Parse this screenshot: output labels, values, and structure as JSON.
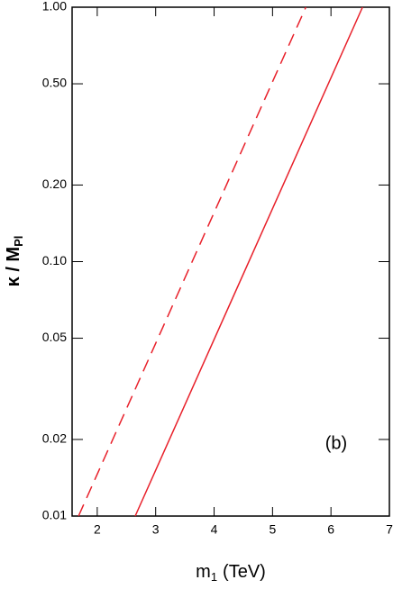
{
  "chart_data": {
    "type": "line",
    "log_y": true,
    "xlabel": "m",
    "xlabel_sub": "1",
    "xlabel_unit": "(TeV)",
    "ylabel": "κ / M",
    "ylabel_sub": "Pl",
    "annotation": "(b)",
    "xlim": [
      1.57,
      7
    ],
    "xticks": [
      2,
      3,
      4,
      5,
      6,
      7
    ],
    "ylim": [
      0.01,
      1
    ],
    "yticks": [
      0.01,
      0.02,
      0.05,
      {
        "value": 0.1,
        "label": "0.10"
      },
      {
        "value": 0.2,
        "label": "0.20"
      },
      {
        "value": 0.5,
        "label": "0.50"
      },
      {
        "value": 1,
        "label": "1.00"
      }
    ],
    "series": [
      {
        "color": "#e8202a",
        "dashed": true,
        "x": [
          1.68,
          5.57
        ],
        "values": [
          0.01,
          1
        ]
      },
      {
        "color": "#e8202a",
        "dashed": false,
        "x": [
          2.65,
          6.54
        ],
        "values": [
          0.01,
          1
        ]
      }
    ]
  }
}
